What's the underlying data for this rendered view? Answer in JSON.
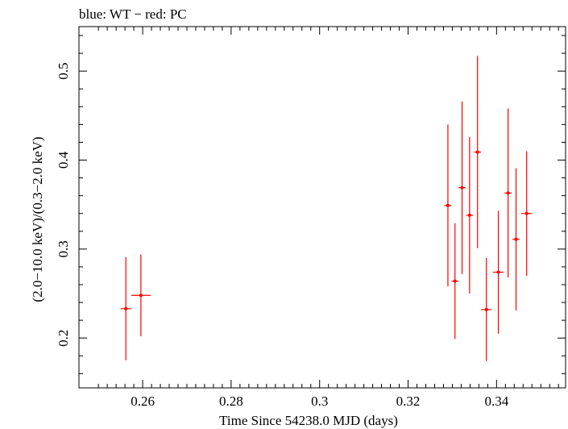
{
  "chart_data": {
    "type": "scatter",
    "title": "blue: WT − red: PC",
    "xlabel": "Time Since 54238.0 MJD (days)",
    "ylabel": "(2.0−10.0 keV)/(0.3−2.0 keV)",
    "xlim": [
      0.2456,
      0.3556
    ],
    "ylim": [
      0.144,
      0.55
    ],
    "x_ticks": [
      0.26,
      0.28,
      0.3,
      0.32,
      0.34
    ],
    "x_tick_labels": [
      "0.26",
      "0.28",
      "0.3",
      "0.32",
      "0.34"
    ],
    "y_ticks": [
      0.2,
      0.3,
      0.4,
      0.5
    ],
    "y_tick_labels": [
      "0.2",
      "0.3",
      "0.4",
      "0.5"
    ],
    "grid": false,
    "series": [
      {
        "name": "PC",
        "color": "#ff0000",
        "points": [
          {
            "x": 0.2562,
            "xerr": 0.0012,
            "y": 0.233,
            "yerr_low": 0.058,
            "yerr_high": 0.058
          },
          {
            "x": 0.2596,
            "xerr": 0.0022,
            "y": 0.248,
            "yerr_low": 0.046,
            "yerr_high": 0.046
          },
          {
            "x": 0.329,
            "xerr": 0.0008,
            "y": 0.349,
            "yerr_low": 0.091,
            "yerr_high": 0.091
          },
          {
            "x": 0.3306,
            "xerr": 0.0008,
            "y": 0.264,
            "yerr_low": 0.065,
            "yerr_high": 0.065
          },
          {
            "x": 0.3322,
            "xerr": 0.0008,
            "y": 0.369,
            "yerr_low": 0.097,
            "yerr_high": 0.097
          },
          {
            "x": 0.3339,
            "xerr": 0.0008,
            "y": 0.338,
            "yerr_low": 0.088,
            "yerr_high": 0.088
          },
          {
            "x": 0.3357,
            "xerr": 0.0008,
            "y": 0.409,
            "yerr_low": 0.108,
            "yerr_high": 0.108
          },
          {
            "x": 0.3377,
            "xerr": 0.0012,
            "y": 0.232,
            "yerr_low": 0.058,
            "yerr_high": 0.058
          },
          {
            "x": 0.3404,
            "xerr": 0.0012,
            "y": 0.274,
            "yerr_low": 0.069,
            "yerr_high": 0.069
          },
          {
            "x": 0.3426,
            "xerr": 0.0008,
            "y": 0.363,
            "yerr_low": 0.095,
            "yerr_high": 0.095
          },
          {
            "x": 0.3444,
            "xerr": 0.0008,
            "y": 0.311,
            "yerr_low": 0.08,
            "yerr_high": 0.08
          },
          {
            "x": 0.3468,
            "xerr": 0.0012,
            "y": 0.34,
            "yerr_low": 0.07,
            "yerr_high": 0.07
          }
        ]
      }
    ]
  }
}
